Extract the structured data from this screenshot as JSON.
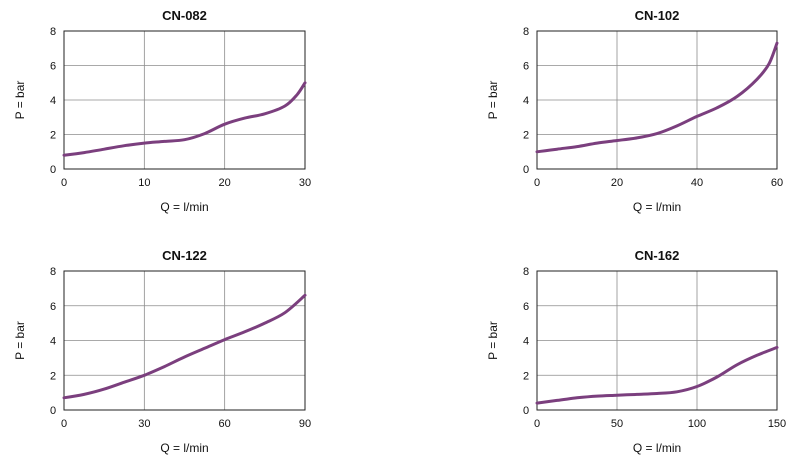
{
  "chart_data": [
    {
      "type": "line",
      "title": "CN-082",
      "xlabel": "Q = l/min",
      "ylabel": "P = bar",
      "xlim": [
        0,
        30
      ],
      "ylim": [
        0,
        8
      ],
      "xticks": [
        0,
        10,
        20,
        30
      ],
      "yticks": [
        0,
        2,
        4,
        6,
        8
      ],
      "grid": true,
      "line_color": "#7b3f7e",
      "series": [
        {
          "x": [
            0,
            2.5,
            5,
            7.5,
            10,
            12.5,
            15,
            17.5,
            20,
            22.5,
            25,
            27.5,
            29,
            30
          ],
          "y": [
            0.8,
            0.95,
            1.15,
            1.35,
            1.5,
            1.6,
            1.7,
            2.05,
            2.6,
            2.95,
            3.2,
            3.65,
            4.3,
            5.0
          ]
        }
      ]
    },
    {
      "type": "line",
      "title": "CN-102",
      "xlabel": "Q = l/min",
      "ylabel": "P = bar",
      "xlim": [
        0,
        60
      ],
      "ylim": [
        0,
        8
      ],
      "xticks": [
        0,
        20,
        40,
        60
      ],
      "yticks": [
        0,
        2,
        4,
        6,
        8
      ],
      "grid": true,
      "line_color": "#7b3f7e",
      "series": [
        {
          "x": [
            0,
            5,
            10,
            15,
            20,
            25,
            30,
            35,
            40,
            45,
            50,
            55,
            58,
            60
          ],
          "y": [
            1.0,
            1.15,
            1.3,
            1.5,
            1.65,
            1.8,
            2.05,
            2.5,
            3.05,
            3.55,
            4.2,
            5.2,
            6.1,
            7.3
          ]
        }
      ]
    },
    {
      "type": "line",
      "title": "CN-122",
      "xlabel": "Q = l/min",
      "ylabel": "P = bar",
      "xlim": [
        0,
        90
      ],
      "ylim": [
        0,
        8
      ],
      "xticks": [
        0,
        30,
        60,
        90
      ],
      "yticks": [
        0,
        2,
        4,
        6,
        8
      ],
      "grid": true,
      "line_color": "#7b3f7e",
      "series": [
        {
          "x": [
            0,
            7.5,
            15,
            22.5,
            30,
            37.5,
            45,
            52.5,
            60,
            67.5,
            75,
            82.5,
            90
          ],
          "y": [
            0.7,
            0.9,
            1.2,
            1.6,
            2.0,
            2.5,
            3.05,
            3.55,
            4.05,
            4.5,
            5.0,
            5.6,
            6.6
          ]
        }
      ]
    },
    {
      "type": "line",
      "title": "CN-162",
      "xlabel": "Q = l/min",
      "ylabel": "P = bar",
      "xlim": [
        0,
        150
      ],
      "ylim": [
        0,
        8
      ],
      "xticks": [
        0,
        50,
        100,
        150
      ],
      "yticks": [
        0,
        2,
        4,
        6,
        8
      ],
      "grid": true,
      "line_color": "#7b3f7e",
      "series": [
        {
          "x": [
            0,
            12.5,
            25,
            37.5,
            50,
            62.5,
            75,
            87.5,
            100,
            112.5,
            125,
            137.5,
            150
          ],
          "y": [
            0.4,
            0.55,
            0.7,
            0.8,
            0.85,
            0.9,
            0.95,
            1.05,
            1.35,
            1.9,
            2.6,
            3.15,
            3.6
          ]
        }
      ]
    }
  ]
}
